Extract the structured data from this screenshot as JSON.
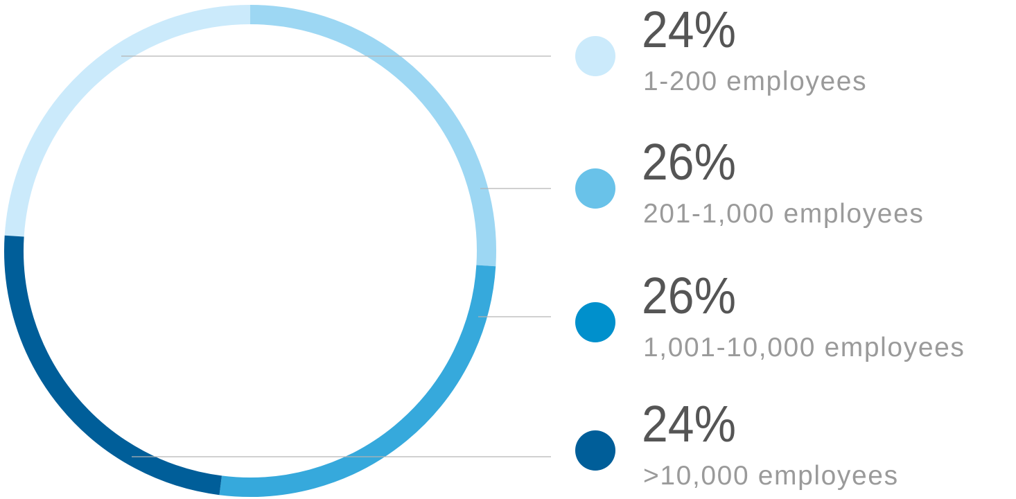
{
  "chart_data": {
    "type": "donut",
    "categories": [
      "1-200 employees",
      "201-1,000 employees",
      "1,001-10,000 employees",
      ">10,000 employees"
    ],
    "values": [
      24,
      26,
      26,
      24
    ],
    "value_labels": [
      "24%",
      "26%",
      "26%",
      "24%"
    ],
    "colors": [
      "#cbeafb",
      "#69c2e9",
      "#0090cc",
      "#005e99"
    ],
    "ring_colors": [
      "#cbeafb",
      "#9dd7f3",
      "#36a9dc",
      "#005e99"
    ]
  }
}
